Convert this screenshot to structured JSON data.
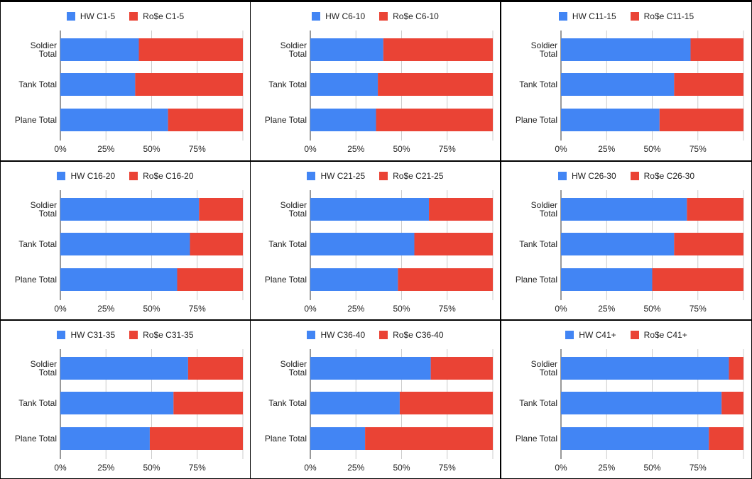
{
  "colors": {
    "hw": "#4285f4",
    "rose": "#ea4335",
    "grid": "#cccccc"
  },
  "chart_data": [
    {
      "type": "bar",
      "orientation": "horizontal",
      "stacked": "percent",
      "legend": [
        "HW C1-5",
        "Ro$e C1-5"
      ],
      "categories": [
        "Soldier Total",
        "Tank Total",
        "Plane Total"
      ],
      "series": [
        {
          "name": "HW C1-5",
          "values": [
            43,
            41,
            59
          ]
        },
        {
          "name": "Ro$e C1-5",
          "values": [
            57,
            59,
            41
          ]
        }
      ],
      "xticks": [
        "0%",
        "25%",
        "50%",
        "75%"
      ]
    },
    {
      "type": "bar",
      "orientation": "horizontal",
      "stacked": "percent",
      "legend": [
        "HW C6-10",
        "Ro$e C6-10"
      ],
      "categories": [
        "Soldier Total",
        "Tank Total",
        "Plane Total"
      ],
      "series": [
        {
          "name": "HW C6-10",
          "values": [
            40,
            37,
            36
          ]
        },
        {
          "name": "Ro$e C6-10",
          "values": [
            60,
            63,
            64
          ]
        }
      ],
      "xticks": [
        "0%",
        "25%",
        "50%",
        "75%"
      ]
    },
    {
      "type": "bar",
      "orientation": "horizontal",
      "stacked": "percent",
      "legend": [
        "HW C11-15",
        "Ro$e C11-15"
      ],
      "categories": [
        "Soldier Total",
        "Tank Total",
        "Plane Total"
      ],
      "series": [
        {
          "name": "HW C11-15",
          "values": [
            71,
            62,
            54
          ]
        },
        {
          "name": "Ro$e C11-15",
          "values": [
            29,
            38,
            46
          ]
        }
      ],
      "xticks": [
        "0%",
        "25%",
        "50%",
        "75%"
      ]
    },
    {
      "type": "bar",
      "orientation": "horizontal",
      "stacked": "percent",
      "legend": [
        "HW C16-20",
        "Ro$e C16-20"
      ],
      "categories": [
        "Soldier Total",
        "Tank Total",
        "Plane Total"
      ],
      "series": [
        {
          "name": "HW C16-20",
          "values": [
            76,
            71,
            64
          ]
        },
        {
          "name": "Ro$e C16-20",
          "values": [
            24,
            29,
            36
          ]
        }
      ],
      "xticks": [
        "0%",
        "25%",
        "50%",
        "75%"
      ]
    },
    {
      "type": "bar",
      "orientation": "horizontal",
      "stacked": "percent",
      "legend": [
        "HW C21-25",
        "Ro$e C21-25"
      ],
      "categories": [
        "Soldier Total",
        "Tank Total",
        "Plane Total"
      ],
      "series": [
        {
          "name": "HW C21-25",
          "values": [
            65,
            57,
            48
          ]
        },
        {
          "name": "Ro$e C21-25",
          "values": [
            35,
            43,
            52
          ]
        }
      ],
      "xticks": [
        "0%",
        "25%",
        "50%",
        "75%"
      ]
    },
    {
      "type": "bar",
      "orientation": "horizontal",
      "stacked": "percent",
      "legend": [
        "HW C26-30",
        "Ro$e C26-30"
      ],
      "categories": [
        "Soldier Total",
        "Tank Total",
        "Plane Total"
      ],
      "series": [
        {
          "name": "HW C26-30",
          "values": [
            69,
            62,
            50
          ]
        },
        {
          "name": "Ro$e C26-30",
          "values": [
            31,
            38,
            50
          ]
        }
      ],
      "xticks": [
        "0%",
        "25%",
        "50%",
        "75%"
      ]
    },
    {
      "type": "bar",
      "orientation": "horizontal",
      "stacked": "percent",
      "legend": [
        "HW C31-35",
        "Ro$e C31-35"
      ],
      "categories": [
        "Soldier Total",
        "Tank Total",
        "Plane Total"
      ],
      "series": [
        {
          "name": "HW C31-35",
          "values": [
            70,
            62,
            49
          ]
        },
        {
          "name": "Ro$e C31-35",
          "values": [
            30,
            38,
            51
          ]
        }
      ],
      "xticks": [
        "0%",
        "25%",
        "50%",
        "75%"
      ]
    },
    {
      "type": "bar",
      "orientation": "horizontal",
      "stacked": "percent",
      "legend": [
        "HW C36-40",
        "Ro$e C36-40"
      ],
      "categories": [
        "Soldier Total",
        "Tank Total",
        "Plane Total"
      ],
      "series": [
        {
          "name": "HW C36-40",
          "values": [
            66,
            49,
            30
          ]
        },
        {
          "name": "Ro$e C36-40",
          "values": [
            34,
            51,
            70
          ]
        }
      ],
      "xticks": [
        "0%",
        "25%",
        "50%",
        "75%"
      ]
    },
    {
      "type": "bar",
      "orientation": "horizontal",
      "stacked": "percent",
      "legend": [
        "HW C41+",
        "Ro$e C41+"
      ],
      "categories": [
        "Soldier Total",
        "Tank Total",
        "Plane Total"
      ],
      "series": [
        {
          "name": "HW C41+",
          "values": [
            92,
            88,
            81
          ]
        },
        {
          "name": "Ro$e C41+",
          "values": [
            8,
            12,
            19
          ]
        }
      ],
      "xticks": [
        "0%",
        "25%",
        "50%",
        "75%"
      ]
    }
  ]
}
